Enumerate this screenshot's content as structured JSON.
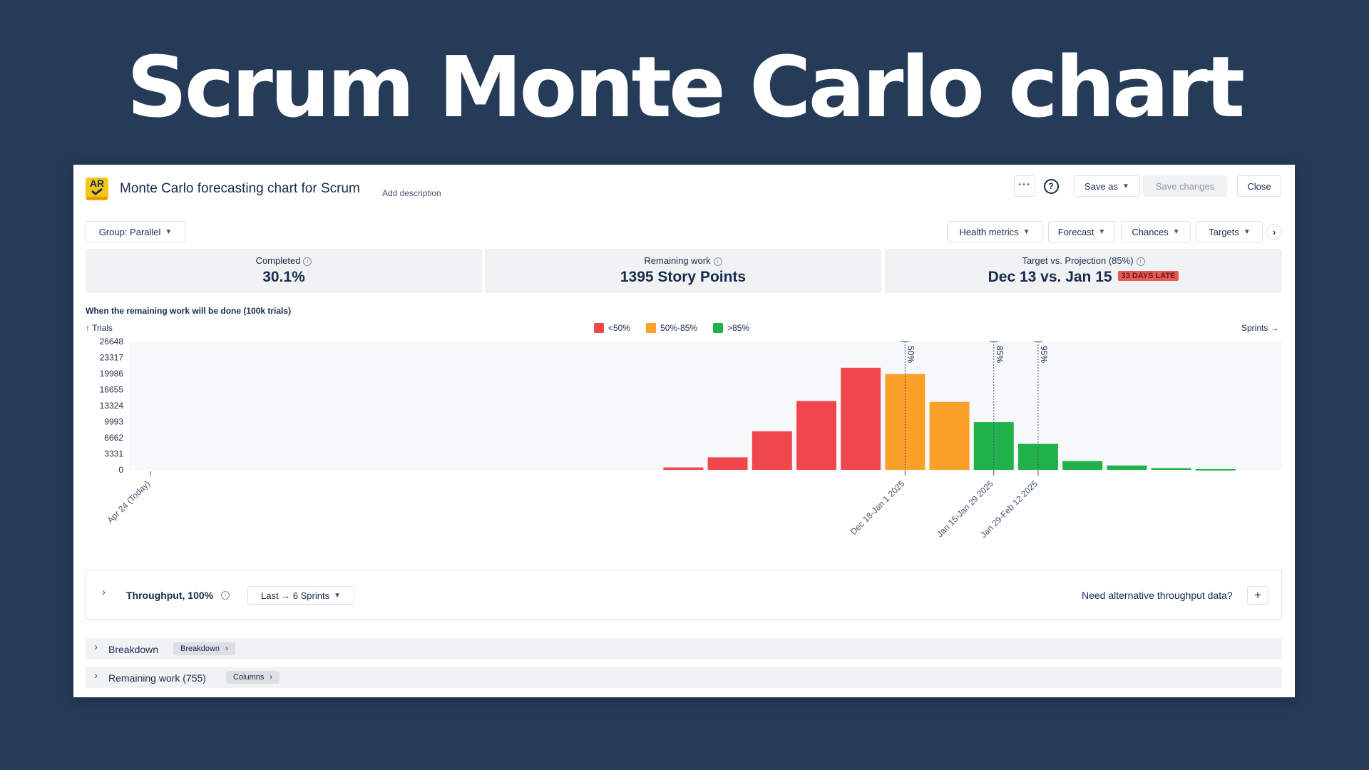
{
  "hero": {
    "title": "Scrum Monte Carlo chart"
  },
  "header": {
    "logo_text": "AR",
    "title": "Monte Carlo forecasting chart for Scrum",
    "add_description": "Add description",
    "more_icon": "ellipsis-icon",
    "help_icon": "question-icon",
    "save_as": "Save as",
    "save_changes": "Save changes",
    "close": "Close"
  },
  "toolbar": {
    "group": "Group: Parallel",
    "filters": [
      "Health metrics",
      "Forecast",
      "Chances",
      "Targets"
    ]
  },
  "stats": {
    "completed_label": "Completed",
    "completed_value": "30.1%",
    "remaining_label": "Remaining work",
    "remaining_value": "1395 Story Points",
    "target_label": "Target vs. Projection (85%)",
    "target_value": "Dec 13 vs. Jan 15",
    "late_badge": "33 DAYS LATE"
  },
  "chart_data": {
    "type": "bar",
    "title": "When the remaining work will be done (100k trials)",
    "ylabel": "Trials",
    "xlabel": "Sprints",
    "ylim": [
      0,
      26648
    ],
    "yticks": [
      0,
      3331,
      6662,
      9993,
      13324,
      16655,
      19986,
      23317,
      26648
    ],
    "legend": [
      {
        "name": "<50%",
        "color": "#f0474f"
      },
      {
        "name": "50%-85%",
        "color": "#fba12a"
      },
      {
        "name": ">85%",
        "color": "#21b14a"
      }
    ],
    "x_labels": [
      {
        "slot": 0,
        "text": "Apr 24 (Today)"
      },
      {
        "slot": 17,
        "text": "Dec 18-Jan 1 2025"
      },
      {
        "slot": 19,
        "text": "Jan 15-Jan 29 2025"
      },
      {
        "slot": 20,
        "text": "Jan 29-Feb 12 2025"
      }
    ],
    "slots": 26,
    "bars": [
      {
        "slot": 12,
        "value": 500,
        "band": 0
      },
      {
        "slot": 13,
        "value": 2600,
        "band": 0
      },
      {
        "slot": 14,
        "value": 8000,
        "band": 0
      },
      {
        "slot": 15,
        "value": 14300,
        "band": 0
      },
      {
        "slot": 16,
        "value": 21200,
        "band": 0
      },
      {
        "slot": 17,
        "value": 19900,
        "band": 1
      },
      {
        "slot": 18,
        "value": 14100,
        "band": 1
      },
      {
        "slot": 19,
        "value": 9900,
        "band": 2
      },
      {
        "slot": 20,
        "value": 5400,
        "band": 2
      },
      {
        "slot": 21,
        "value": 1800,
        "band": 2
      },
      {
        "slot": 22,
        "value": 900,
        "band": 2
      },
      {
        "slot": 23,
        "value": 350,
        "band": 2
      },
      {
        "slot": 24,
        "value": 150,
        "band": 2
      }
    ],
    "markers": [
      {
        "slot": 17,
        "label": "50%"
      },
      {
        "slot": 19,
        "label": "85%"
      },
      {
        "slot": 20,
        "label": "95%"
      }
    ]
  },
  "throughput": {
    "title": "Throughput, 100%",
    "range": "Last → 6 Sprints",
    "alt_text": "Need alternative throughput data?"
  },
  "breakdown": {
    "title": "Breakdown",
    "pill": "Breakdown"
  },
  "remaining": {
    "title": "Remaining work (755)",
    "pill": "Columns"
  }
}
